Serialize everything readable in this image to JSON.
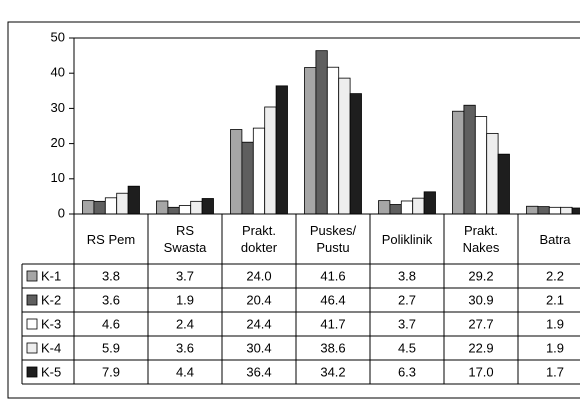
{
  "chart_data": {
    "type": "bar",
    "categories": [
      "RS Pem",
      "RS\nSwasta",
      "Prakt.\ndokter",
      "Puskes/\nPustu",
      "Poliklinik",
      "Prakt.\nNakes",
      "Batra"
    ],
    "series": [
      {
        "name": "K-1",
        "color": "#a6a6a6",
        "values": [
          3.8,
          3.7,
          24.0,
          41.6,
          3.8,
          29.2,
          2.2
        ],
        "value_labels": [
          "3.8",
          "3.7",
          "24.0",
          "41.6",
          "3.8",
          "29.2",
          "2.2"
        ]
      },
      {
        "name": "K-2",
        "color": "#5f5f5f",
        "values": [
          3.6,
          1.9,
          20.4,
          46.4,
          2.7,
          30.9,
          2.1
        ],
        "value_labels": [
          "3.6",
          "1.9",
          "20.4",
          "46.4",
          "2.7",
          "30.9",
          "2.1"
        ]
      },
      {
        "name": "K-3",
        "color": "#ffffff",
        "values": [
          4.6,
          2.4,
          24.4,
          41.7,
          3.7,
          27.7,
          1.9
        ],
        "value_labels": [
          "4.6",
          "2.4",
          "24.4",
          "41.7",
          "3.7",
          "27.7",
          "1.9"
        ]
      },
      {
        "name": "K-4",
        "color": "#eeeeee",
        "values": [
          5.9,
          3.6,
          30.4,
          38.6,
          4.5,
          22.9,
          1.9
        ],
        "value_labels": [
          "5.9",
          "3.6",
          "30.4",
          "38.6",
          "4.5",
          "22.9",
          "1.9"
        ]
      },
      {
        "name": "K-5",
        "color": "#1e1e1e",
        "values": [
          7.9,
          4.4,
          36.4,
          34.2,
          6.3,
          17.0,
          1.7
        ],
        "value_labels": [
          "7.9",
          "4.4",
          "36.4",
          "34.2",
          "6.3",
          "17.0",
          "1.7"
        ]
      }
    ],
    "ylim": [
      0,
      50
    ],
    "yticks": [
      0,
      10,
      20,
      30,
      40,
      50
    ],
    "grid": false
  }
}
